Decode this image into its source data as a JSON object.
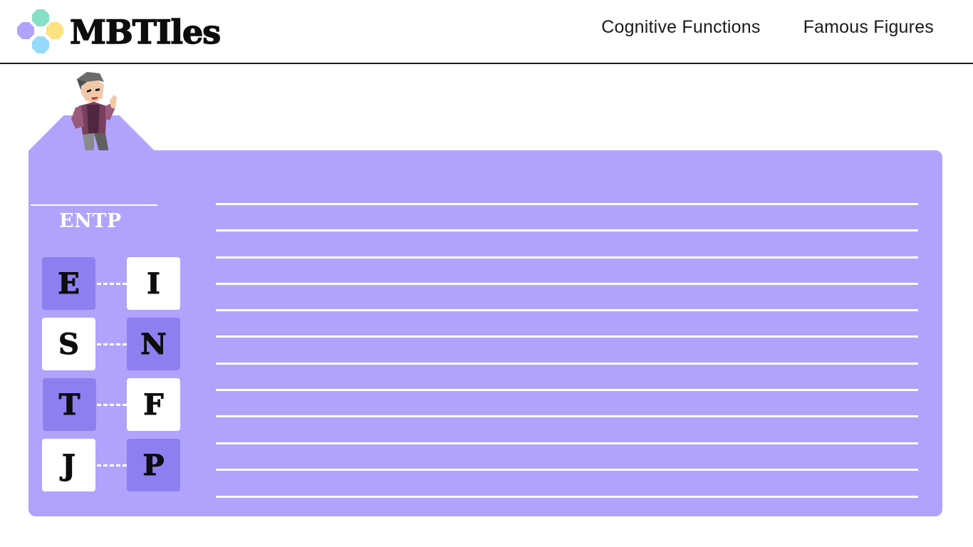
{
  "brand": {
    "name": "MBTIles",
    "logo_colors": [
      "#86e0c6",
      "#b1a3fc",
      "#fde27f",
      "#96dafc"
    ]
  },
  "nav": {
    "items": [
      {
        "label": "Cognitive Functions"
      },
      {
        "label": "Famous Figures"
      }
    ]
  },
  "card": {
    "type_label": "ENTP",
    "character_icon": "person-pointing-icon",
    "accent_color": "#b1a3fc",
    "active_color": "#8e7ff1",
    "pairs": [
      {
        "left": "E",
        "right": "I",
        "selected": "left"
      },
      {
        "left": "S",
        "right": "N",
        "selected": "right"
      },
      {
        "left": "T",
        "right": "F",
        "selected": "left"
      },
      {
        "left": "J",
        "right": "P",
        "selected": "right"
      }
    ],
    "rule_count": 12
  }
}
